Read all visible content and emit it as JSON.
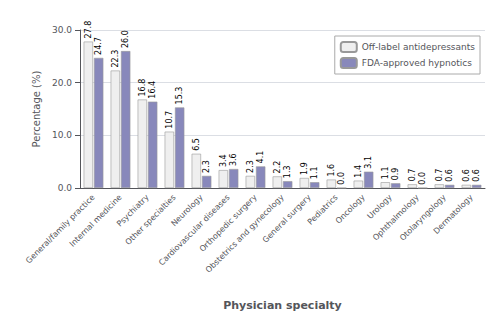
{
  "chart_data": {
    "type": "bar",
    "categories": [
      "General/family practice",
      "Internal medicine",
      "Psychiatry",
      "Other specialties",
      "Neurology",
      "Cardiovascular diseases",
      "Orthopedic surgery",
      "Obstetrics and gynecology",
      "General surgery",
      "Pediatrics",
      "Oncology",
      "Urology",
      "Ophthalmology",
      "Otolaryngology",
      "Dermatology"
    ],
    "series": [
      {
        "name": "Off-label antidepressants",
        "color": "#efefef",
        "values": [
          27.8,
          22.3,
          16.8,
          10.7,
          6.5,
          3.4,
          2.3,
          2.2,
          1.9,
          1.6,
          1.4,
          1.1,
          0.7,
          0.7,
          0.6
        ],
        "value_labels": [
          "27.8",
          "22.3",
          "16.8",
          "10.7",
          "6.5",
          "3.4",
          "2.3",
          "2.2",
          "1.9",
          "1.6",
          "1.4",
          "1.1",
          "0.7",
          "0.7",
          "0.6"
        ]
      },
      {
        "name": "FDA-approved hypnotics",
        "color": "#8888bb",
        "values": [
          24.7,
          26.0,
          16.4,
          15.3,
          2.3,
          3.6,
          4.1,
          1.3,
          1.1,
          0.0,
          3.1,
          0.9,
          0.0,
          0.6,
          0.6
        ],
        "value_labels": [
          "24.7",
          "26.0",
          "16.4",
          "15.3",
          "2.3",
          "3.6",
          "4.1",
          "1.3",
          "1.1",
          "0.0",
          "3.1",
          "0.9",
          "0.0",
          "0.6",
          "0.6"
        ]
      }
    ],
    "xlabel": "Physician specialty",
    "ylabel": "Percentage (%)",
    "ylim": [
      0.0,
      30.0
    ],
    "yticks": [
      {
        "value": 0.0,
        "label": "0.0"
      },
      {
        "value": 10.0,
        "label": "10.0"
      },
      {
        "value": 20.0,
        "label": "20.0"
      },
      {
        "value": 30.0,
        "label": "30.0"
      }
    ],
    "grid": true,
    "legend": "upper right",
    "data_labels": true
  }
}
